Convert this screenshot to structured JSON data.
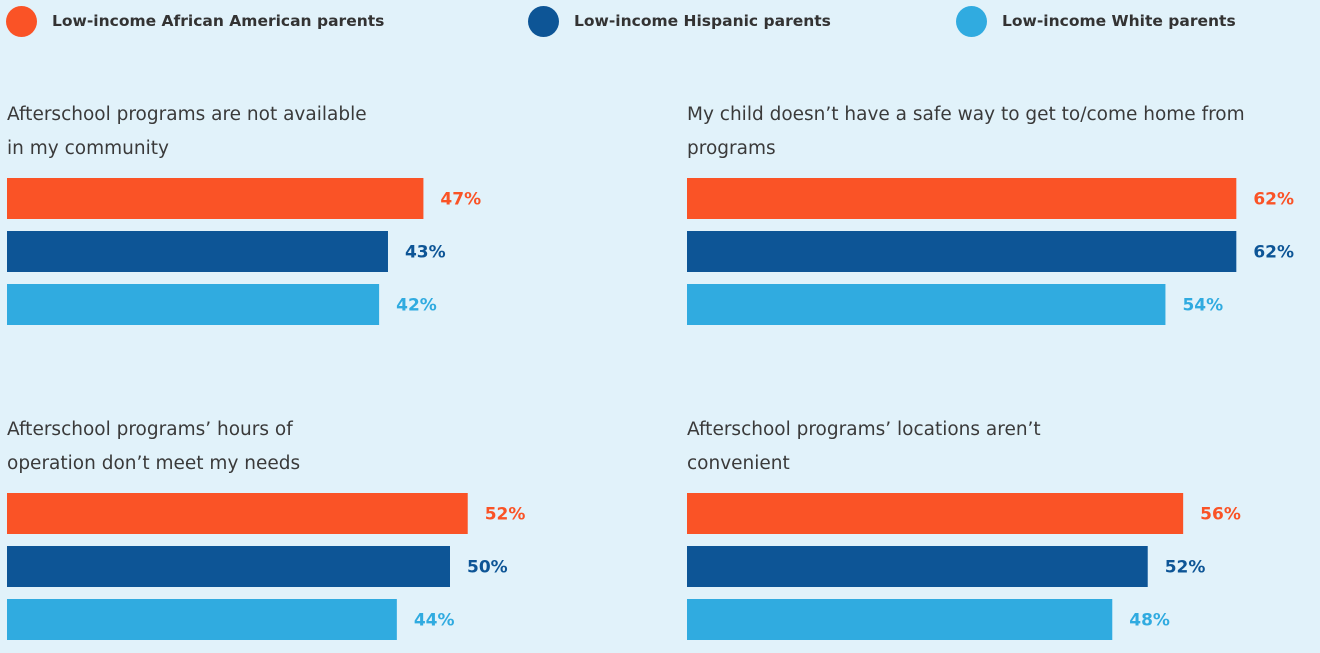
{
  "colors": {
    "background": "#e1f2fa",
    "african_american": "#fa5326",
    "hispanic": "#0d5596",
    "white": "#30abe0"
  },
  "legend": [
    {
      "label": "Low-income African American parents",
      "color": "#fa5326"
    },
    {
      "label": "Low-income Hispanic parents",
      "color": "#0d5596"
    },
    {
      "label": "Low-income White parents",
      "color": "#30abe0"
    }
  ],
  "chart_data": [
    {
      "type": "bar",
      "orientation": "horizontal",
      "title": "Afterschool programs are not available in my community",
      "series": [
        {
          "name": "Low-income African American parents",
          "value": 47,
          "label": "47%"
        },
        {
          "name": "Low-income Hispanic parents",
          "value": 43,
          "label": "43%"
        },
        {
          "name": "Low-income White parents",
          "value": 42,
          "label": "42%"
        }
      ]
    },
    {
      "type": "bar",
      "orientation": "horizontal",
      "title": "My child doesn’t have a safe way to get to/come home from programs",
      "series": [
        {
          "name": "Low-income African American parents",
          "value": 62,
          "label": "62%"
        },
        {
          "name": "Low-income Hispanic parents",
          "value": 62,
          "label": "62%"
        },
        {
          "name": "Low-income White parents",
          "value": 54,
          "label": "54%"
        }
      ]
    },
    {
      "type": "bar",
      "orientation": "horizontal",
      "title": "Afterschool programs’ hours of operation don’t meet my needs",
      "series": [
        {
          "name": "Low-income African American parents",
          "value": 52,
          "label": "52%"
        },
        {
          "name": "Low-income Hispanic parents",
          "value": 50,
          "label": "50%"
        },
        {
          "name": "Low-income White parents",
          "value": 44,
          "label": "44%"
        }
      ]
    },
    {
      "type": "bar",
      "orientation": "horizontal",
      "title": "Afterschool programs’ locations aren’t convenient",
      "series": [
        {
          "name": "Low-income African American parents",
          "value": 56,
          "label": "56%"
        },
        {
          "name": "Low-income Hispanic parents",
          "value": 52,
          "label": "52%"
        },
        {
          "name": "Low-income White parents",
          "value": 48,
          "label": "48%"
        }
      ]
    }
  ]
}
